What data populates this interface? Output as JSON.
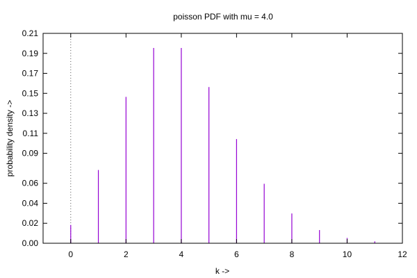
{
  "chart_data": {
    "type": "bar",
    "title": "poisson PDF with mu = 4.0",
    "xlabel": "k ->",
    "ylabel": "probability density ->",
    "xlim": [
      -1,
      12
    ],
    "ylim": [
      0,
      0.21
    ],
    "x_ticks": [
      0,
      2,
      4,
      6,
      8,
      10,
      12
    ],
    "y_ticks": [
      0.0,
      0.02,
      0.04,
      0.06,
      0.09,
      0.11,
      0.13,
      0.15,
      0.17,
      0.19,
      0.21
    ],
    "y_tick_labels": [
      "0.00",
      "0.02",
      "0.04",
      "0.06",
      "0.09",
      "0.11",
      "0.13",
      "0.15",
      "0.17",
      "0.19",
      "0.21"
    ],
    "x_tick_labels": [
      "0",
      "2",
      "4",
      "6",
      "8",
      "10",
      "12"
    ],
    "x": [
      0,
      1,
      2,
      3,
      4,
      5,
      6,
      7,
      8,
      9,
      10,
      11
    ],
    "values": [
      0.0183,
      0.0733,
      0.1465,
      0.1954,
      0.1954,
      0.1563,
      0.1042,
      0.0595,
      0.0298,
      0.0132,
      0.0053,
      0.0019
    ],
    "zero_line": {
      "x": 0,
      "style": "dotted"
    },
    "bar_color": "#9400d3",
    "grid": false
  }
}
